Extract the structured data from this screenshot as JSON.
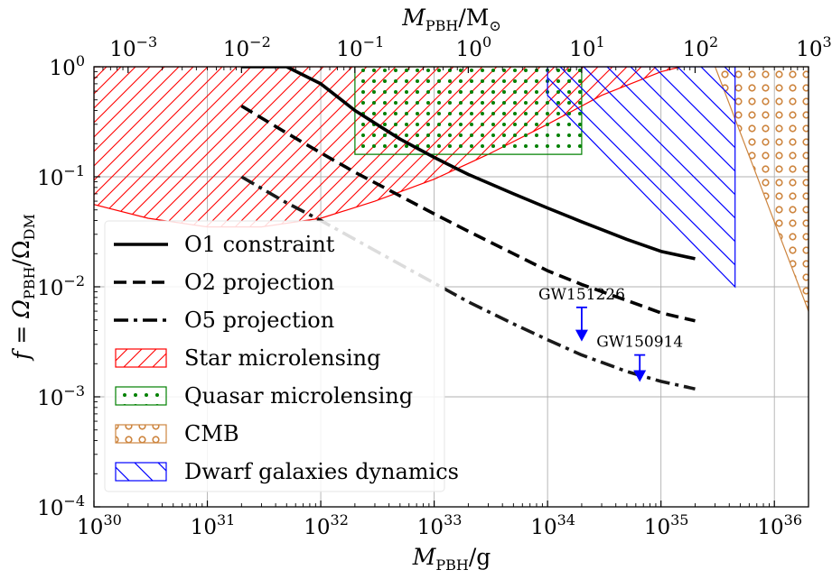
{
  "chart_data": {
    "type": "line",
    "x_scale": "log",
    "y_scale": "log",
    "xlabel": {
      "main": "M",
      "sub": "PBH",
      "rest": "/g"
    },
    "ylabel": {
      "pre": "f = Ω",
      "sub1": "PBH",
      "mid": "/Ω",
      "sub2": "DM"
    },
    "top_xlabel": {
      "main": "M",
      "sub": "PBH",
      "rest": "/M",
      "sun": "⊙"
    },
    "xlim": [
      1e+30,
      2e+36
    ],
    "ylim": [
      0.0001,
      1
    ],
    "grid": true,
    "x_ticks": [
      {
        "value": 1e+30,
        "base": "10",
        "exp": "30"
      },
      {
        "value": 1e+31,
        "base": "10",
        "exp": "31"
      },
      {
        "value": 1e+32,
        "base": "10",
        "exp": "32"
      },
      {
        "value": 1e+33,
        "base": "10",
        "exp": "33"
      },
      {
        "value": 1e+34,
        "base": "10",
        "exp": "34"
      },
      {
        "value": 1e+35,
        "base": "10",
        "exp": "35"
      },
      {
        "value": 1e+36,
        "base": "10",
        "exp": "36"
      }
    ],
    "y_ticks": [
      {
        "value": 0.0001,
        "base": "10",
        "exp": "−4"
      },
      {
        "value": 0.001,
        "base": "10",
        "exp": "−3"
      },
      {
        "value": 0.01,
        "base": "10",
        "exp": "−2"
      },
      {
        "value": 0.1,
        "base": "10",
        "exp": "−1"
      },
      {
        "value": 1,
        "base": "10",
        "exp": "0"
      }
    ],
    "top_ticks": [
      {
        "value": 0.001,
        "base": "10",
        "exp": "−3"
      },
      {
        "value": 0.01,
        "base": "10",
        "exp": "−2"
      },
      {
        "value": 0.1,
        "base": "10",
        "exp": "−1"
      },
      {
        "value": 1,
        "base": "10",
        "exp": "0"
      },
      {
        "value": 10,
        "base": "10",
        "exp": "1"
      },
      {
        "value": 100,
        "base": "10",
        "exp": "2"
      },
      {
        "value": 1000,
        "base": "10",
        "exp": "3"
      }
    ],
    "series": [
      {
        "name": "O1 constraint",
        "style": "solid",
        "color": "#000000",
        "x": [
          2e+31,
          3e+31,
          5e+31,
          1e+32,
          2e+32,
          5e+32,
          1e+33,
          2e+33,
          5e+33,
          1e+34,
          2e+34,
          5e+34,
          1e+35,
          2e+35
        ],
        "y": [
          1.0,
          1.0,
          1.0,
          0.7,
          0.4,
          0.22,
          0.15,
          0.105,
          0.07,
          0.052,
          0.039,
          0.027,
          0.021,
          0.018
        ]
      },
      {
        "name": "O2 projection",
        "style": "dashed",
        "color": "#000000",
        "x": [
          2e+31,
          5e+31,
          1e+32,
          2e+32,
          5e+32,
          1e+33,
          2e+33,
          5e+33,
          1e+34,
          2e+34,
          5e+34,
          1e+35,
          2e+35
        ],
        "y": [
          0.44,
          0.25,
          0.165,
          0.11,
          0.067,
          0.046,
          0.032,
          0.02,
          0.014,
          0.0105,
          0.0075,
          0.0058,
          0.0049
        ]
      },
      {
        "name": "O5 projection",
        "style": "dashdot",
        "color": "#1a1a1a",
        "x": [
          2e+31,
          5e+31,
          1e+32,
          2e+32,
          5e+32,
          1e+33,
          2e+33,
          5e+33,
          1e+34,
          2e+34,
          5e+34,
          1e+35,
          2e+35
        ],
        "y": [
          0.1,
          0.058,
          0.04,
          0.027,
          0.016,
          0.0108,
          0.0073,
          0.0046,
          0.0033,
          0.0024,
          0.0017,
          0.00138,
          0.00118
        ]
      }
    ],
    "regions": [
      {
        "name": "Star microlensing",
        "hatch": "diagonal",
        "color": "#ff0000",
        "upper": [
          [
            1e+30,
            1.0
          ],
          [
            1.5e+35,
            1.0
          ]
        ],
        "lower": [
          [
            1e+30,
            0.056
          ],
          [
            3e+30,
            0.042
          ],
          [
            1e+31,
            0.035
          ],
          [
            3e+31,
            0.035
          ],
          [
            1e+32,
            0.042
          ],
          [
            3e+32,
            0.06
          ],
          [
            1e+33,
            0.095
          ],
          [
            3e+33,
            0.16
          ],
          [
            1e+34,
            0.3
          ],
          [
            3e+34,
            0.55
          ],
          [
            1e+35,
            0.9
          ],
          [
            1.5e+35,
            1.0
          ]
        ]
      },
      {
        "name": "Quasar microlensing",
        "hatch": "dots",
        "color": "#008000",
        "box": {
          "x0": 2e+32,
          "x1": 2e+34,
          "y0": 0.16,
          "y1": 1.0
        }
      },
      {
        "name": "CMB",
        "hatch": "circles",
        "color": "#cd853f",
        "polygon": [
          [
            3e+35,
            1.0
          ],
          [
            2e+36,
            1.0
          ],
          [
            2e+36,
            0.006
          ]
        ]
      },
      {
        "name": "Dwarf galaxies dynamics",
        "hatch": "backslash",
        "color": "#0000ff",
        "polygon": [
          [
            1e+34,
            1.0
          ],
          [
            4.5e+35,
            1.0
          ],
          [
            4.5e+35,
            0.01
          ],
          [
            1e+34,
            0.55
          ]
        ]
      }
    ],
    "annotations": [
      {
        "label": "GW151226",
        "x": 2e+34,
        "y_top": 0.0065,
        "y_arrow": 0.0035
      },
      {
        "label": "GW150914",
        "x": 6.5e+34,
        "y_top": 0.0024,
        "y_arrow": 0.0015
      }
    ],
    "legend_position": "lower-left",
    "legend": [
      {
        "label": "O1 constraint",
        "kind": "line",
        "style": "solid"
      },
      {
        "label": "O2 projection",
        "kind": "line",
        "style": "dashed"
      },
      {
        "label": "O5 projection",
        "kind": "line",
        "style": "dashdot"
      },
      {
        "label": "Star microlensing",
        "kind": "patch",
        "hatch": "diagonal",
        "color": "#ff0000"
      },
      {
        "label": "Quasar microlensing",
        "kind": "patch",
        "hatch": "dots",
        "color": "#008000"
      },
      {
        "label": "CMB",
        "kind": "patch",
        "hatch": "circles",
        "color": "#cd853f"
      },
      {
        "label": "Dwarf galaxies dynamics",
        "kind": "patch",
        "hatch": "backslash",
        "color": "#0000ff"
      }
    ]
  }
}
